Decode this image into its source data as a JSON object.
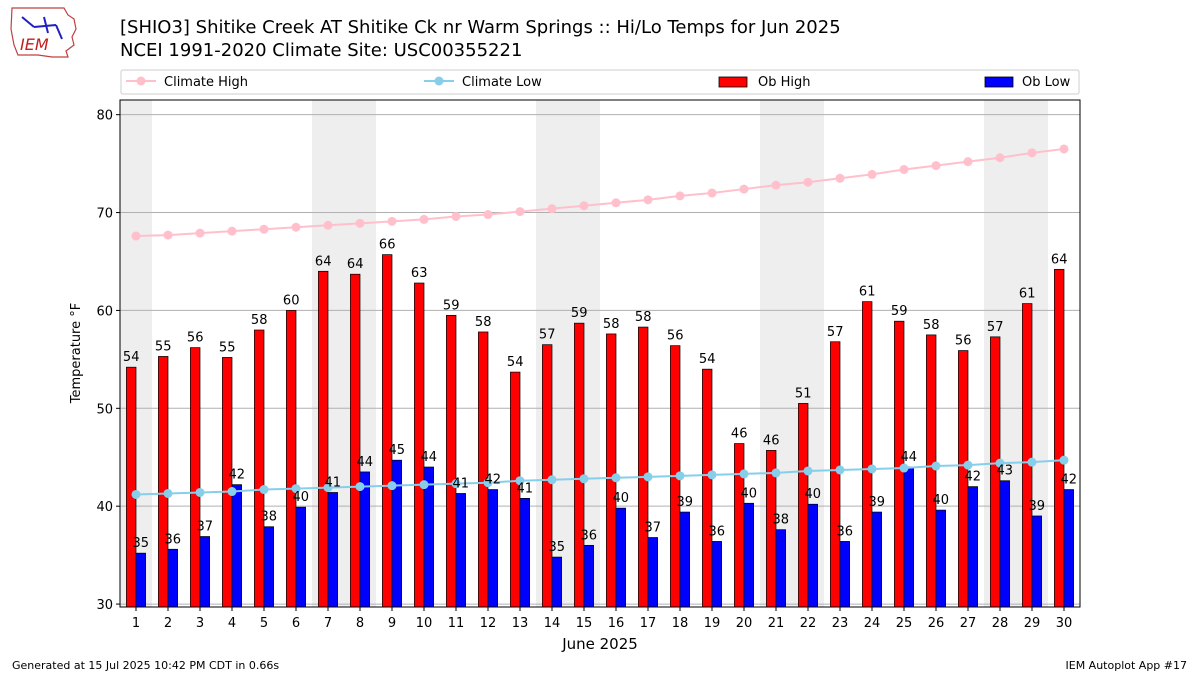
{
  "header": {
    "title_line1": "[SHIO3] Shitike Creek  AT Shitike Ck nr Warm Springs :: Hi/Lo Temps for Jun 2025",
    "title_line2": "NCEI 1991-2020 Climate Site: USC00355221",
    "logo_text": "IEM"
  },
  "footer": {
    "generated": "Generated at 15 Jul 2025 10:42 PM CDT in 0.66s",
    "app": "IEM Autoplot App #17"
  },
  "colors": {
    "ob_high": "#ff0000",
    "ob_low": "#0000ff",
    "climate_high": "#ffc0cb",
    "climate_low": "#87ceeb",
    "weekend_band": "#eeeeee",
    "grid": "#b0b0b0"
  },
  "chart_data": {
    "type": "bar",
    "xlabel": "June 2025",
    "ylabel": "Temperature °F",
    "ylim": [
      29.7,
      81.5
    ],
    "yticks": [
      30,
      40,
      50,
      60,
      70,
      80
    ],
    "grid": "horizontal",
    "legend_placement": "top",
    "categories": [
      "1",
      "2",
      "3",
      "4",
      "5",
      "6",
      "7",
      "8",
      "9",
      "10",
      "11",
      "12",
      "13",
      "14",
      "15",
      "16",
      "17",
      "18",
      "19",
      "20",
      "21",
      "22",
      "23",
      "24",
      "25",
      "26",
      "27",
      "28",
      "29",
      "30"
    ],
    "series": [
      {
        "name": "Ob High",
        "kind": "bar",
        "values": [
          54.2,
          55.3,
          56.2,
          55.2,
          58.0,
          60.0,
          64.0,
          63.7,
          65.7,
          62.8,
          59.5,
          57.8,
          53.7,
          56.5,
          58.7,
          57.6,
          58.3,
          56.4,
          54.0,
          46.4,
          45.7,
          50.5,
          56.8,
          60.9,
          58.9,
          57.5,
          55.9,
          57.3,
          60.7,
          64.2
        ],
        "labels": [
          54,
          55,
          56,
          55,
          58,
          60,
          64,
          64,
          66,
          63,
          59,
          58,
          54,
          57,
          59,
          58,
          58,
          56,
          54,
          46,
          46,
          51,
          57,
          61,
          59,
          58,
          56,
          57,
          61,
          64
        ]
      },
      {
        "name": "Ob Low",
        "kind": "bar",
        "values": [
          35.2,
          35.6,
          36.9,
          42.2,
          37.9,
          39.9,
          41.4,
          43.5,
          44.7,
          44.0,
          41.3,
          41.7,
          40.8,
          34.8,
          36.0,
          39.8,
          36.8,
          39.4,
          36.4,
          40.3,
          37.6,
          40.2,
          36.4,
          39.4,
          44.0,
          39.6,
          42.0,
          42.6,
          39.0,
          41.7
        ],
        "labels": [
          35,
          36,
          37,
          42,
          38,
          40,
          41,
          44,
          45,
          44,
          41,
          42,
          41,
          35,
          36,
          40,
          37,
          39,
          36,
          40,
          38,
          40,
          36,
          39,
          44,
          40,
          42,
          43,
          39,
          42
        ]
      },
      {
        "name": "Climate High",
        "kind": "line",
        "values": [
          67.6,
          67.7,
          67.9,
          68.1,
          68.3,
          68.5,
          68.7,
          68.9,
          69.1,
          69.3,
          69.6,
          69.8,
          70.1,
          70.4,
          70.7,
          71.0,
          71.3,
          71.7,
          72.0,
          72.4,
          72.8,
          73.1,
          73.5,
          73.9,
          74.4,
          74.8,
          75.2,
          75.6,
          76.1,
          76.5
        ]
      },
      {
        "name": "Climate Low",
        "kind": "line",
        "values": [
          41.2,
          41.3,
          41.4,
          41.5,
          41.7,
          41.8,
          41.9,
          42.0,
          42.1,
          42.2,
          42.3,
          42.4,
          42.6,
          42.7,
          42.8,
          42.9,
          43.0,
          43.1,
          43.2,
          43.3,
          43.4,
          43.6,
          43.7,
          43.8,
          43.9,
          44.1,
          44.2,
          44.4,
          44.5,
          44.7
        ]
      }
    ],
    "weekend_days": [
      1,
      7,
      8,
      14,
      15,
      21,
      22,
      28,
      29
    ]
  }
}
